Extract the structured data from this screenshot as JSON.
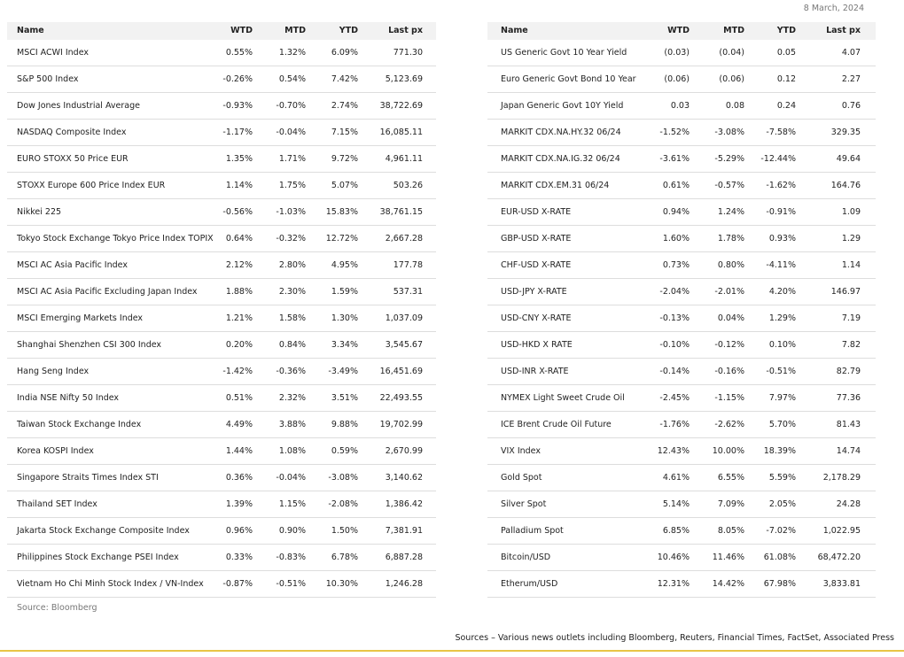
{
  "date": "8 March, 2024",
  "left_source": "Source: Bloomberg",
  "footer": "Sources – Various news outlets including Bloomberg, Reuters, Financial Times, FactSet, Associated Press",
  "tables": [
    {
      "columns": [
        "Name",
        "WTD",
        "MTD",
        "YTD",
        "Last px"
      ],
      "rows": [
        [
          "MSCI ACWI Index",
          "0.55%",
          "1.32%",
          "6.09%",
          "771.30"
        ],
        [
          "S&P 500 Index",
          "-0.26%",
          "0.54%",
          "7.42%",
          "5,123.69"
        ],
        [
          "Dow Jones Industrial Average",
          "-0.93%",
          "-0.70%",
          "2.74%",
          "38,722.69"
        ],
        [
          "NASDAQ Composite Index",
          "-1.17%",
          "-0.04%",
          "7.15%",
          "16,085.11"
        ],
        [
          "EURO STOXX 50 Price EUR",
          "1.35%",
          "1.71%",
          "9.72%",
          "4,961.11"
        ],
        [
          "STOXX Europe 600 Price Index EUR",
          "1.14%",
          "1.75%",
          "5.07%",
          "503.26"
        ],
        [
          "Nikkei 225",
          "-0.56%",
          "-1.03%",
          "15.83%",
          "38,761.15"
        ],
        [
          "Tokyo Stock Exchange Tokyo Price Index TOPIX",
          "0.64%",
          "-0.32%",
          "12.72%",
          "2,667.28"
        ],
        [
          "MSCI AC Asia Pacific Index",
          "2.12%",
          "2.80%",
          "4.95%",
          "177.78"
        ],
        [
          "MSCI AC Asia Pacific Excluding Japan Index",
          "1.88%",
          "2.30%",
          "1.59%",
          "537.31"
        ],
        [
          "MSCI Emerging Markets Index",
          "1.21%",
          "1.58%",
          "1.30%",
          "1,037.09"
        ],
        [
          "Shanghai Shenzhen CSI 300 Index",
          "0.20%",
          "0.84%",
          "3.34%",
          "3,545.67"
        ],
        [
          "Hang Seng Index",
          "-1.42%",
          "-0.36%",
          "-3.49%",
          "16,451.69"
        ],
        [
          "India NSE Nifty 50 Index",
          "0.51%",
          "2.32%",
          "3.51%",
          "22,493.55"
        ],
        [
          "Taiwan Stock Exchange Index",
          "4.49%",
          "3.88%",
          "9.88%",
          "19,702.99"
        ],
        [
          "Korea KOSPI Index",
          "1.44%",
          "1.08%",
          "0.59%",
          "2,670.99"
        ],
        [
          "Singapore Straits Times Index STI",
          "0.36%",
          "-0.04%",
          "-3.08%",
          "3,140.62"
        ],
        [
          "Thailand SET Index",
          "1.39%",
          "1.15%",
          "-2.08%",
          "1,386.42"
        ],
        [
          "Jakarta Stock Exchange Composite Index",
          "0.96%",
          "0.90%",
          "1.50%",
          "7,381.91"
        ],
        [
          "Philippines Stock Exchange PSEI Index",
          "0.33%",
          "-0.83%",
          "6.78%",
          "6,887.28"
        ],
        [
          "Vietnam Ho Chi Minh Stock Index / VN-Index",
          "-0.87%",
          "-0.51%",
          "10.30%",
          "1,246.28"
        ]
      ]
    },
    {
      "columns": [
        "Name",
        "WTD",
        "MTD",
        "YTD",
        "Last px"
      ],
      "rows": [
        [
          "US Generic Govt 10 Year Yield",
          "(0.03)",
          "(0.04)",
          "0.05",
          "4.07"
        ],
        [
          "Euro Generic Govt Bond 10 Year",
          "(0.06)",
          "(0.06)",
          "0.12",
          "2.27"
        ],
        [
          "Japan Generic Govt 10Y Yield",
          "0.03",
          "0.08",
          "0.24",
          "0.76"
        ],
        [
          "MARKIT CDX.NA.HY.32 06/24",
          "-1.52%",
          "-3.08%",
          "-7.58%",
          "329.35"
        ],
        [
          "MARKIT CDX.NA.IG.32 06/24",
          "-3.61%",
          "-5.29%",
          "-12.44%",
          "49.64"
        ],
        [
          "MARKIT CDX.EM.31 06/24",
          "0.61%",
          "-0.57%",
          "-1.62%",
          "164.76"
        ],
        [
          "EUR-USD X-RATE",
          "0.94%",
          "1.24%",
          "-0.91%",
          "1.09"
        ],
        [
          "GBP-USD X-RATE",
          "1.60%",
          "1.78%",
          "0.93%",
          "1.29"
        ],
        [
          "CHF-USD X-RATE",
          "0.73%",
          "0.80%",
          "-4.11%",
          "1.14"
        ],
        [
          "USD-JPY X-RATE",
          "-2.04%",
          "-2.01%",
          "4.20%",
          "146.97"
        ],
        [
          "USD-CNY X-RATE",
          "-0.13%",
          "0.04%",
          "1.29%",
          "7.19"
        ],
        [
          "USD-HKD X RATE",
          "-0.10%",
          "-0.12%",
          "0.10%",
          "7.82"
        ],
        [
          "USD-INR X-RATE",
          "-0.14%",
          "-0.16%",
          "-0.51%",
          "82.79"
        ],
        [
          "NYMEX Light Sweet Crude Oil",
          "-2.45%",
          "-1.15%",
          "7.97%",
          "77.36"
        ],
        [
          "ICE Brent Crude Oil Future",
          "-1.76%",
          "-2.62%",
          "5.70%",
          "81.43"
        ],
        [
          "VIX Index",
          "12.43%",
          "10.00%",
          "18.39%",
          "14.74"
        ],
        [
          "Gold Spot",
          "4.61%",
          "6.55%",
          "5.59%",
          "2,178.29"
        ],
        [
          "Silver Spot",
          "5.14%",
          "7.09%",
          "2.05%",
          "24.28"
        ],
        [
          "Palladium Spot",
          "6.85%",
          "8.05%",
          "-7.02%",
          "1,022.95"
        ],
        [
          "Bitcoin/USD",
          "10.46%",
          "11.46%",
          "61.08%",
          "68,472.20"
        ],
        [
          "Etherum/USD",
          "12.31%",
          "14.42%",
          "67.98%",
          "3,833.81"
        ]
      ]
    }
  ]
}
